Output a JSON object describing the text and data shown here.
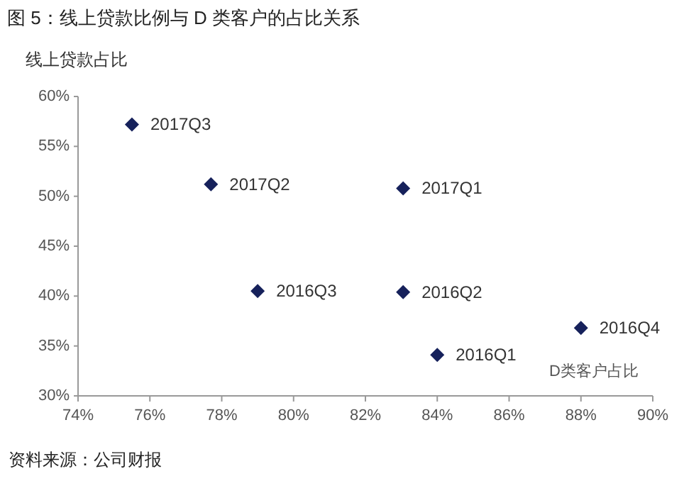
{
  "chart_data": {
    "type": "scatter",
    "title": "图 5：线上贷款比例与 D 类客户的占比关系",
    "ylabel": "线上贷款占比",
    "xlabel": "D类客户占比",
    "x": [
      75.5,
      77.7,
      83.05,
      79.0,
      83.05,
      84.0,
      88.0
    ],
    "series": [
      {
        "color": "#16215b",
        "values": [
          57.2,
          51.2,
          50.8,
          40.5,
          40.4,
          34.1,
          36.8
        ]
      }
    ],
    "marker": "diamond",
    "grid": false,
    "xlim": [
      74,
      90
    ],
    "xticks": [
      {
        "value": 74,
        "label": "74%"
      },
      {
        "value": 76,
        "label": "76%"
      },
      {
        "value": 78,
        "label": "78%"
      },
      {
        "value": 80,
        "label": "80%"
      },
      {
        "value": 82,
        "label": "82%"
      },
      {
        "value": 84,
        "label": "84%"
      },
      {
        "value": 86,
        "label": "86%"
      },
      {
        "value": 88,
        "label": "88%"
      },
      {
        "value": 90,
        "label": "90%"
      }
    ],
    "ylim": [
      30,
      60
    ],
    "yticks": [
      {
        "value": 30,
        "label": "30%"
      },
      {
        "value": 35,
        "label": "35%"
      },
      {
        "value": 40,
        "label": "40%"
      },
      {
        "value": 45,
        "label": "45%"
      },
      {
        "value": 50,
        "label": "50%"
      },
      {
        "value": 55,
        "label": "55%"
      },
      {
        "value": 60,
        "label": "60%"
      }
    ],
    "annotations": [
      {
        "text": "2017Q3",
        "x": 75.5,
        "y": 57.2
      },
      {
        "text": "2017Q2",
        "x": 77.7,
        "y": 51.2
      },
      {
        "text": "2017Q1",
        "x": 83.05,
        "y": 50.8
      },
      {
        "text": "2016Q3",
        "x": 79.0,
        "y": 40.5
      },
      {
        "text": "2016Q2",
        "x": 83.05,
        "y": 40.4
      },
      {
        "text": "2016Q1",
        "x": 84.0,
        "y": 34.1
      },
      {
        "text": "2016Q4",
        "x": 88.0,
        "y": 36.8
      },
      "资料来源：公司财报"
    ]
  }
}
